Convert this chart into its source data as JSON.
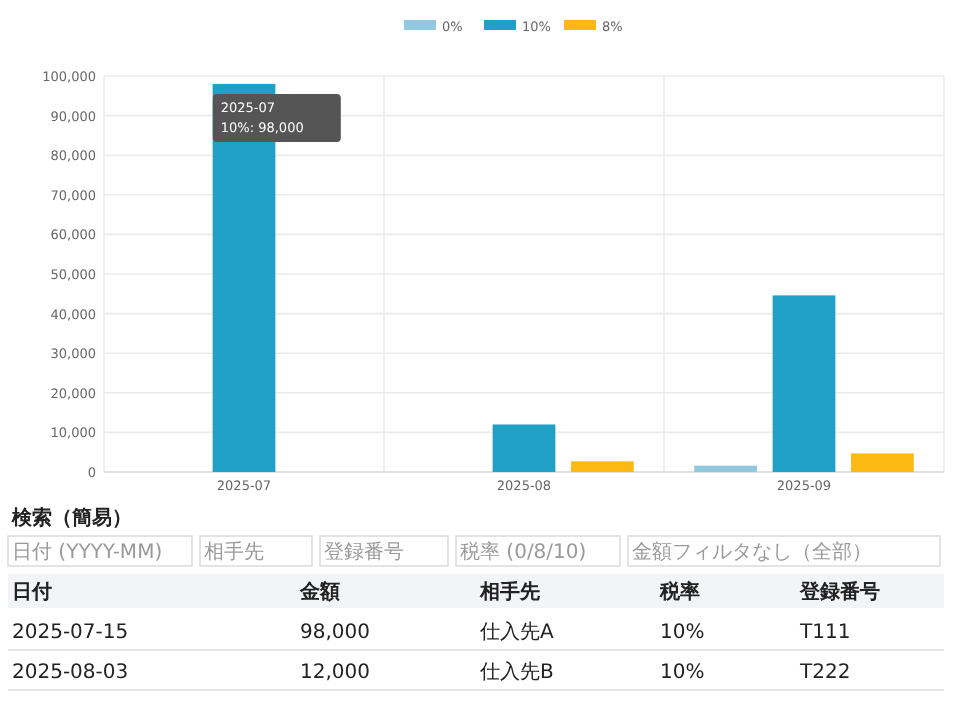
{
  "chart_data": {
    "type": "bar",
    "categories": [
      "2025-07",
      "2025-08",
      "2025-09"
    ],
    "series": [
      {
        "name": "0%",
        "color": "#93c9e0",
        "values": [
          null,
          null,
          1600
        ]
      },
      {
        "name": "10%",
        "color": "#1fa0c4",
        "values": [
          98000,
          12000,
          44600
        ]
      },
      {
        "name": "8%",
        "color": "#fdb913",
        "values": [
          null,
          2700,
          4700
        ]
      }
    ],
    "ylim": [
      0,
      100000
    ],
    "yticks": [
      {
        "value": 0,
        "label": "0"
      },
      {
        "value": 10000,
        "label": "10,000"
      },
      {
        "value": 20000,
        "label": "20,000"
      },
      {
        "value": 30000,
        "label": "30,000"
      },
      {
        "value": 40000,
        "label": "40,000"
      },
      {
        "value": 50000,
        "label": "50,000"
      },
      {
        "value": 60000,
        "label": "60,000"
      },
      {
        "value": 70000,
        "label": "70,000"
      },
      {
        "value": 80000,
        "label": "80,000"
      },
      {
        "value": 90000,
        "label": "90,000"
      },
      {
        "value": 100000,
        "label": "100,000"
      }
    ],
    "grid": true,
    "legend": "top",
    "annotations": [
      {
        "text": "10%: 98,000",
        "x": "2025-07",
        "y": 98000
      },
      "検索（簡易）",
      "日付 (YYYY-MM)",
      "相手先",
      "登録番号",
      "税率 (0/8/10)",
      "金額フィルタなし（全部）",
      "日付",
      "金額",
      "相手先",
      "税率",
      "登録番号",
      "2025-07-15",
      "98,000",
      "仕入先A",
      "10%",
      "T111",
      "2025-08-03",
      "12,000",
      "仕入先B",
      "10%",
      "T222"
    ]
  }
}
